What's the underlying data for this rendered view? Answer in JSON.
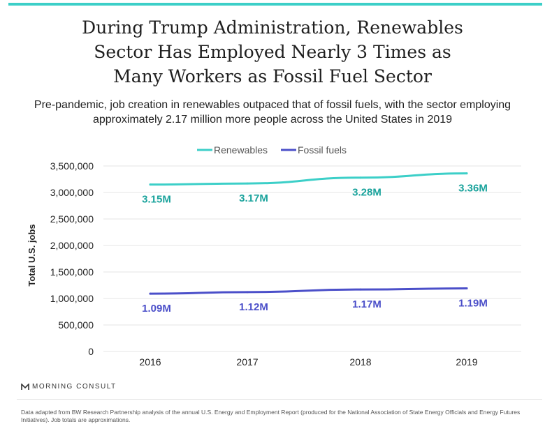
{
  "header": {
    "title_lines": [
      "During Trump Administration, Renewables",
      "Sector Has Employed Nearly 3 Times as",
      "Many Workers as Fossil Fuel Sector"
    ],
    "subtitle": "Pre-pandemic, job creation in renewables outpaced that of fossil fuels, with the sector employing approximately 2.17 million more people across the United States in 2019"
  },
  "colors": {
    "accent_bar": "#3ccfc8",
    "renewables": "#3ccfc8",
    "renewables_label": "#1aa39c",
    "fossil": "#4b4fc9",
    "fossil_label": "#4b4fc9",
    "grid": "#e6e6e6"
  },
  "chart_data": {
    "type": "line",
    "x": [
      "2016",
      "2017",
      "2018",
      "2019"
    ],
    "ylabel": "Total U.S. jobs",
    "ylim": [
      0,
      3500000
    ],
    "yticks": [
      0,
      500000,
      1000000,
      1500000,
      2000000,
      2500000,
      3000000,
      3500000
    ],
    "ytick_labels": [
      "0",
      "500,000",
      "1,000,000",
      "1,500,000",
      "2,000,000",
      "2,500,000",
      "3,000,000",
      "3,500,000"
    ],
    "grid": true,
    "legend_position": "top-center",
    "series": [
      {
        "name": "Renewables",
        "values": [
          3150000,
          3170000,
          3280000,
          3360000
        ],
        "labels": [
          "3.15M",
          "3.17M",
          "3.28M",
          "3.36M"
        ]
      },
      {
        "name": "Fossil fuels",
        "values": [
          1090000,
          1120000,
          1170000,
          1190000
        ],
        "labels": [
          "1.09M",
          "1.12M",
          "1.17M",
          "1.19M"
        ]
      }
    ]
  },
  "footer": {
    "logo_text": "MORNING CONSULT",
    "logo_icon": "morning-consult-logo-icon",
    "note": "Data adapted from BW Research Partnership analysis of the annual U.S. Energy and Employment Report (produced for the National Association of State Energy Officials and Energy Futures Initiatives). Job totals are approximations."
  }
}
